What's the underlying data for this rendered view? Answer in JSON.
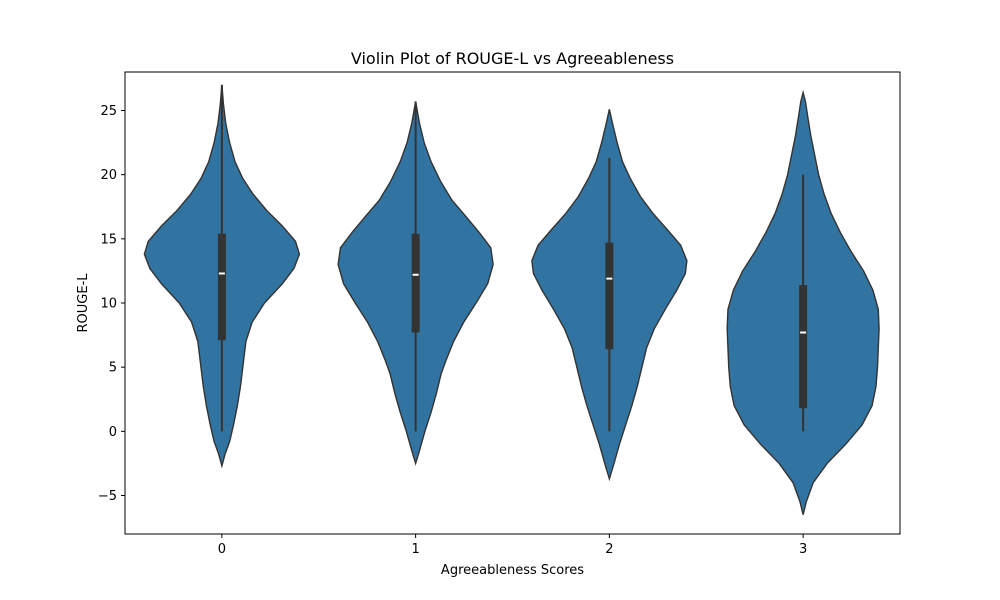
{
  "chart_data": {
    "type": "violin",
    "title": "Violin Plot of ROUGE-L vs Agreeableness",
    "xlabel": "Agreeableness Scores",
    "ylabel": "ROUGE-L",
    "ylim": [
      -8.0,
      28.0
    ],
    "y_ticks": [
      -5,
      0,
      5,
      10,
      15,
      20,
      25
    ],
    "y_tick_labels": [
      "−5",
      "0",
      "5",
      "10",
      "15",
      "20",
      "25"
    ],
    "categories": [
      "0",
      "1",
      "2",
      "3"
    ],
    "fill_color": "#3274a1",
    "violins": [
      {
        "category": "0",
        "min": 0.0,
        "q1": 7.1,
        "median": 12.3,
        "q3": 15.4,
        "max": 27.0,
        "kde_min": -2.7,
        "kde_max": 27.0,
        "density": [
          [
            -2.7,
            0.0
          ],
          [
            -1.8,
            0.04
          ],
          [
            -0.8,
            0.1
          ],
          [
            0.5,
            0.15
          ],
          [
            2.0,
            0.2
          ],
          [
            3.5,
            0.24
          ],
          [
            5.0,
            0.27
          ],
          [
            7.0,
            0.31
          ],
          [
            8.5,
            0.39
          ],
          [
            10.0,
            0.55
          ],
          [
            11.5,
            0.78
          ],
          [
            12.7,
            0.93
          ],
          [
            13.8,
            1.0
          ],
          [
            14.8,
            0.95
          ],
          [
            16.0,
            0.78
          ],
          [
            17.2,
            0.58
          ],
          [
            18.5,
            0.4
          ],
          [
            19.7,
            0.27
          ],
          [
            21.0,
            0.17
          ],
          [
            22.5,
            0.1
          ],
          [
            24.0,
            0.05
          ],
          [
            25.5,
            0.02
          ],
          [
            27.0,
            0.0
          ]
        ]
      },
      {
        "category": "1",
        "min": 0.0,
        "q1": 7.7,
        "median": 12.2,
        "q3": 15.4,
        "max": 25.7,
        "kde_min": -2.5,
        "kde_max": 25.7,
        "density": [
          [
            -2.5,
            0.0
          ],
          [
            -1.5,
            0.05
          ],
          [
            0.0,
            0.12
          ],
          [
            1.5,
            0.2
          ],
          [
            3.0,
            0.27
          ],
          [
            4.5,
            0.33
          ],
          [
            5.5,
            0.39
          ],
          [
            7.0,
            0.49
          ],
          [
            8.5,
            0.62
          ],
          [
            10.0,
            0.78
          ],
          [
            11.5,
            0.93
          ],
          [
            13.0,
            1.0
          ],
          [
            14.3,
            0.97
          ],
          [
            15.5,
            0.82
          ],
          [
            16.8,
            0.64
          ],
          [
            18.0,
            0.47
          ],
          [
            19.5,
            0.32
          ],
          [
            21.0,
            0.2
          ],
          [
            22.5,
            0.11
          ],
          [
            24.0,
            0.05
          ],
          [
            25.7,
            0.0
          ]
        ]
      },
      {
        "category": "2",
        "min": 0.0,
        "q1": 6.4,
        "median": 11.9,
        "q3": 14.7,
        "max": 21.3,
        "kde_min": -3.7,
        "kde_max": 25.1,
        "density": [
          [
            -3.7,
            0.0
          ],
          [
            -2.5,
            0.06
          ],
          [
            -1.0,
            0.13
          ],
          [
            0.5,
            0.21
          ],
          [
            2.0,
            0.29
          ],
          [
            3.5,
            0.36
          ],
          [
            5.0,
            0.42
          ],
          [
            6.5,
            0.48
          ],
          [
            8.0,
            0.58
          ],
          [
            9.5,
            0.72
          ],
          [
            11.0,
            0.87
          ],
          [
            12.3,
            0.98
          ],
          [
            13.3,
            1.0
          ],
          [
            14.5,
            0.92
          ],
          [
            15.7,
            0.75
          ],
          [
            17.0,
            0.56
          ],
          [
            18.3,
            0.4
          ],
          [
            19.7,
            0.27
          ],
          [
            21.0,
            0.17
          ],
          [
            22.5,
            0.1
          ],
          [
            24.0,
            0.04
          ],
          [
            25.1,
            0.0
          ]
        ]
      },
      {
        "category": "3",
        "min": 0.0,
        "q1": 1.8,
        "median": 7.7,
        "q3": 11.4,
        "max": 20.0,
        "kde_min": -6.5,
        "kde_max": 26.4,
        "density": [
          [
            -6.5,
            0.0
          ],
          [
            -5.5,
            0.04
          ],
          [
            -4.0,
            0.13
          ],
          [
            -2.5,
            0.31
          ],
          [
            -1.0,
            0.55
          ],
          [
            0.5,
            0.76
          ],
          [
            2.0,
            0.89
          ],
          [
            3.5,
            0.94
          ],
          [
            5.0,
            0.96
          ],
          [
            6.5,
            0.97
          ],
          [
            8.0,
            0.98
          ],
          [
            9.5,
            0.97
          ],
          [
            11.0,
            0.9
          ],
          [
            12.5,
            0.78
          ],
          [
            14.0,
            0.62
          ],
          [
            15.5,
            0.48
          ],
          [
            17.0,
            0.36
          ],
          [
            18.5,
            0.27
          ],
          [
            20.0,
            0.2
          ],
          [
            21.5,
            0.15
          ],
          [
            23.0,
            0.1
          ],
          [
            24.5,
            0.06
          ],
          [
            25.7,
            0.03
          ],
          [
            26.4,
            0.0
          ]
        ]
      }
    ]
  }
}
